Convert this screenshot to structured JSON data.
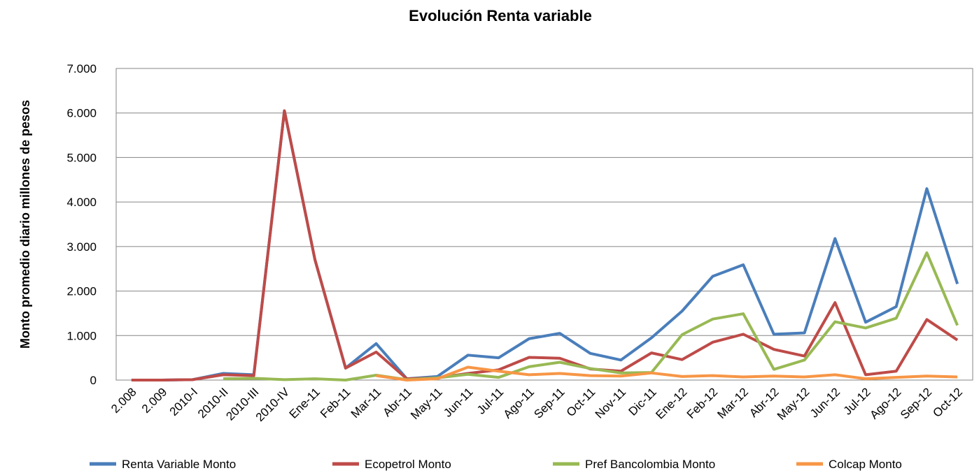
{
  "chart_data": {
    "type": "line",
    "title": "Evolución Renta variable",
    "y_label": "Monto promedio diario millones de pesos",
    "categories": [
      "2.008",
      "2.009",
      "2010-I",
      "2010-II",
      "2010-III",
      "2010-IV",
      "Ene-11",
      "Feb-11",
      "Mar-11",
      "Abr-11",
      "May-11",
      "Jun-11",
      "Jul-11",
      "Ago-11",
      "Sep-11",
      "Oct-11",
      "Nov-11",
      "Dic-11",
      "Ene-12",
      "Feb-12",
      "Mar-12",
      "Abr-12",
      "May-12",
      "Jun-12",
      "Jul-12",
      "Ago-12",
      "Sep-12",
      "Oct-12"
    ],
    "series": [
      {
        "name": "Renta Variable Monto",
        "color": "#4a7ebb",
        "values": [
          0,
          0,
          10,
          150,
          120,
          6050,
          2700,
          270,
          820,
          30,
          80,
          560,
          500,
          930,
          1050,
          600,
          450,
          950,
          1550,
          2330,
          2590,
          1030,
          1060,
          3180,
          1300,
          1650,
          4300,
          2160
        ]
      },
      {
        "name": "Ecopetrol Monto",
        "color": "#be4b48",
        "values": [
          0,
          0,
          10,
          120,
          100,
          6050,
          2700,
          270,
          630,
          30,
          50,
          150,
          230,
          510,
          490,
          250,
          200,
          610,
          460,
          850,
          1030,
          690,
          540,
          1740,
          120,
          200,
          1360,
          900
        ]
      },
      {
        "name": "Pref Bancolombia Monto",
        "color": "#98b954",
        "values": [
          null,
          null,
          null,
          30,
          40,
          10,
          30,
          0,
          110,
          10,
          50,
          130,
          60,
          300,
          400,
          260,
          160,
          170,
          1020,
          1370,
          1490,
          240,
          450,
          1310,
          1170,
          1390,
          2860,
          1230
        ]
      },
      {
        "name": "Colcap Monto",
        "color": "#f79646",
        "values": [
          null,
          null,
          null,
          null,
          null,
          null,
          null,
          null,
          100,
          0,
          30,
          290,
          200,
          120,
          150,
          100,
          90,
          160,
          80,
          100,
          70,
          90,
          70,
          120,
          30,
          60,
          90,
          70
        ]
      }
    ],
    "ylim": [
      0,
      7000
    ],
    "yticks": [
      0,
      {
        "value": 1000,
        "label": "1.000"
      },
      {
        "value": 2000,
        "label": "2.000"
      },
      {
        "value": 3000,
        "label": "3.000"
      },
      {
        "value": 4000,
        "label": "4.000"
      },
      {
        "value": 5000,
        "label": "5.000"
      },
      {
        "value": 6000,
        "label": "6.000"
      },
      {
        "value": 7000,
        "label": "7.000"
      }
    ],
    "grid": true,
    "legend": "bottom"
  }
}
